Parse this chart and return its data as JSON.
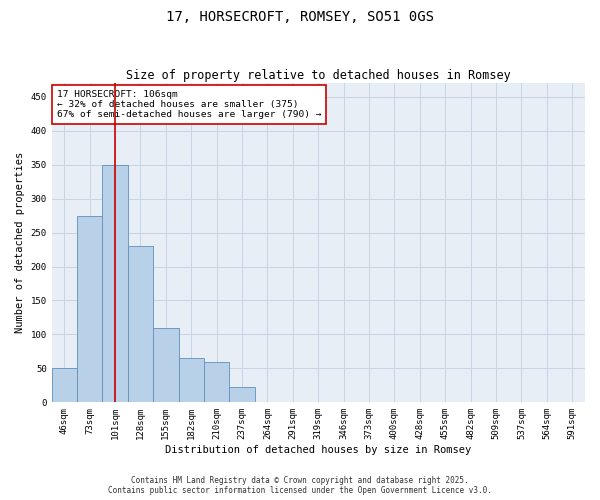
{
  "title": "17, HORSECROFT, ROMSEY, SO51 0GS",
  "subtitle": "Size of property relative to detached houses in Romsey",
  "xlabel": "Distribution of detached houses by size in Romsey",
  "ylabel": "Number of detached properties",
  "categories": [
    "46sqm",
    "73sqm",
    "101sqm",
    "128sqm",
    "155sqm",
    "182sqm",
    "210sqm",
    "237sqm",
    "264sqm",
    "291sqm",
    "319sqm",
    "346sqm",
    "373sqm",
    "400sqm",
    "428sqm",
    "455sqm",
    "482sqm",
    "509sqm",
    "537sqm",
    "564sqm",
    "591sqm"
  ],
  "values": [
    50,
    275,
    350,
    230,
    110,
    65,
    60,
    22,
    0,
    0,
    0,
    0,
    0,
    0,
    0,
    0,
    0,
    0,
    0,
    0,
    0
  ],
  "bar_color": "#b8d0e8",
  "bar_edge_color": "#6090bb",
  "grid_color": "#c8d4e4",
  "background_color": "#e8eef6",
  "vline_x": 2.0,
  "vline_color": "#cc0000",
  "annotation_text": "17 HORSECROFT: 106sqm\n← 32% of detached houses are smaller (375)\n67% of semi-detached houses are larger (790) →",
  "annotation_box_color": "#ffffff",
  "annotation_box_edge_color": "#cc0000",
  "footer_line1": "Contains HM Land Registry data © Crown copyright and database right 2025.",
  "footer_line2": "Contains public sector information licensed under the Open Government Licence v3.0.",
  "ylim": [
    0,
    470
  ],
  "yticks": [
    0,
    50,
    100,
    150,
    200,
    250,
    300,
    350,
    400,
    450
  ],
  "title_fontsize": 10,
  "subtitle_fontsize": 8.5,
  "axis_label_fontsize": 7.5,
  "tick_fontsize": 6.5,
  "annotation_fontsize": 6.8,
  "footer_fontsize": 5.5
}
